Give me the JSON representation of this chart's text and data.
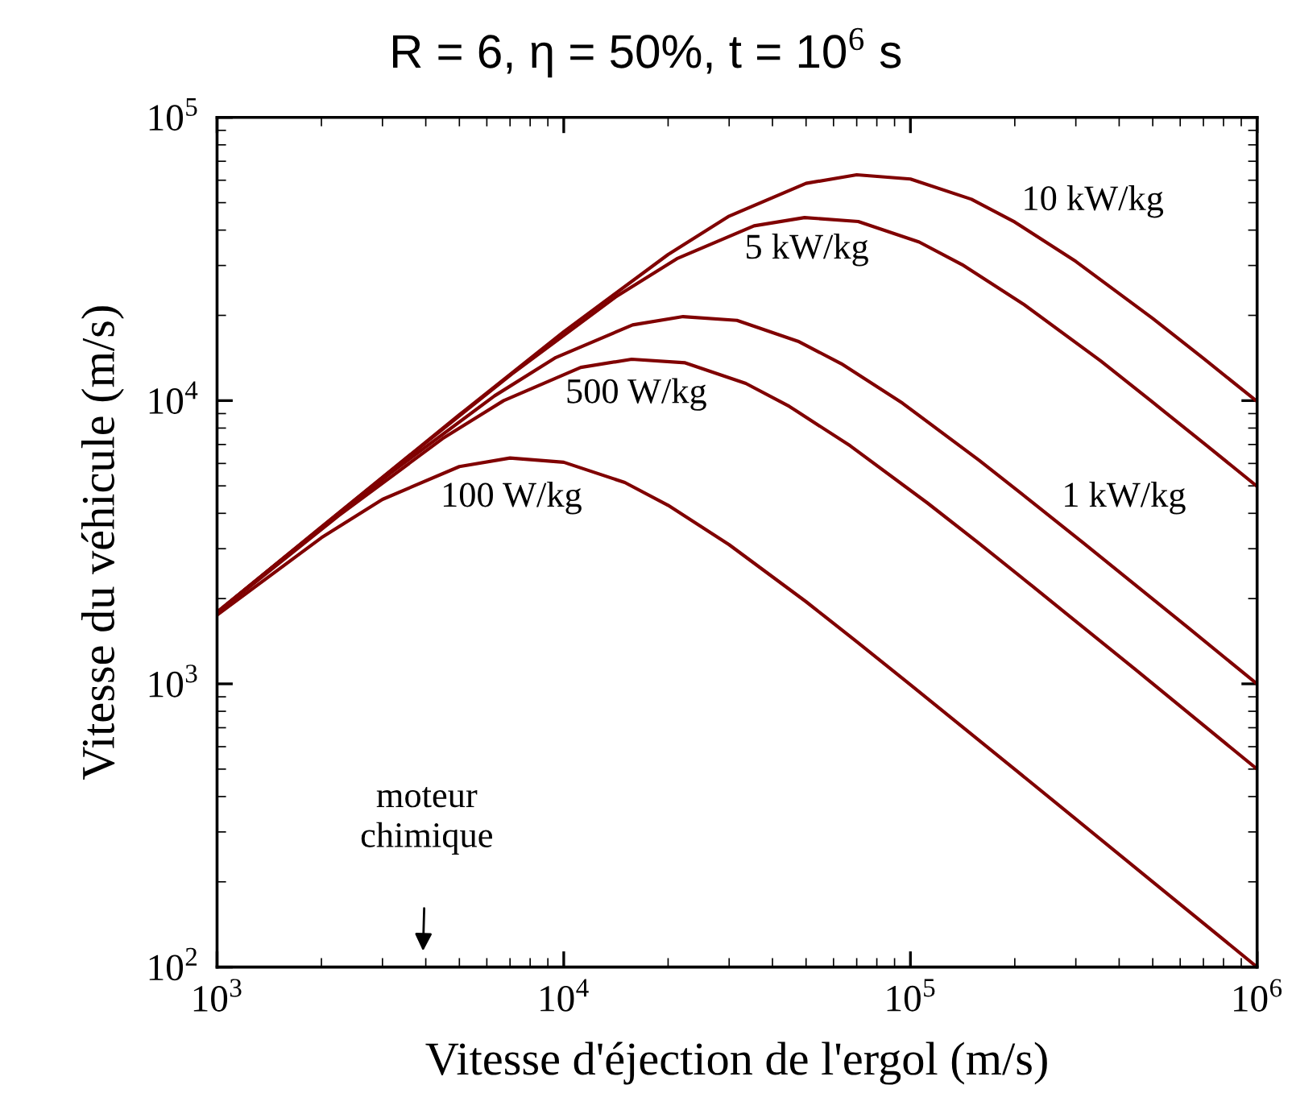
{
  "chart_data": {
    "type": "line",
    "title": "R = 6, η = 50%, t = 10$^{6}$ s",
    "xlabel": "Vitesse d'éjection de l'ergol (m/s)",
    "ylabel": "Vitesse du véhicule (m/s)",
    "log": "xy",
    "xlim": [
      1000,
      1000000
    ],
    "ylim": [
      100,
      100000
    ],
    "xticks": [
      {
        "value": 1000,
        "label": "10$^{3}$"
      },
      {
        "value": 10000,
        "label": "10$^{4}$"
      },
      {
        "value": 100000,
        "label": "10$^{5}$"
      },
      {
        "value": 1000000,
        "label": "10$^{6}$"
      }
    ],
    "yticks": [
      {
        "value": 100,
        "label": "10$^{2}$"
      },
      {
        "value": 1000,
        "label": "10$^{3}$"
      },
      {
        "value": 10000,
        "label": "10$^{4}$"
      },
      {
        "value": 100000,
        "label": "10$^{5}$"
      }
    ],
    "grid": false,
    "marker": "none",
    "line_style": "solid",
    "series": [
      {
        "name": "10 kW/kg",
        "color": "#800000",
        "x": [
          1000,
          2000,
          5000,
          10000,
          20000,
          30000,
          50000,
          70000,
          100000,
          150000,
          200000,
          300000,
          500000,
          700000,
          1000000
        ],
        "values": [
          1790,
          3580,
          8910,
          17500,
          32800,
          44800,
          58500,
          62700,
          60600,
          51400,
          42700,
          31000,
          19500,
          14100,
          9930
        ]
      },
      {
        "name": "5 kW/kg",
        "color": "#800000",
        "x": [
          1000,
          3540,
          7070,
          14100,
          21200,
          35400,
          49500,
          70700,
          106000,
          141000,
          212000,
          354000,
          495000,
          707000,
          1000000
        ],
        "values": [
          1790,
          6300,
          12400,
          23200,
          31700,
          41400,
          44300,
          42900,
          36300,
          30200,
          21900,
          13800,
          9960,
          7020,
          4980
        ]
      },
      {
        "name": "1 kW/kg",
        "color": "#800000",
        "x": [
          1000,
          1580,
          3160,
          6320,
          9490,
          15800,
          22100,
          31600,
          47400,
          63200,
          94900,
          158000,
          221000,
          316000,
          632000,
          1000000
        ],
        "values": [
          1790,
          2820,
          5540,
          10400,
          14200,
          18500,
          19800,
          19200,
          16200,
          13500,
          9790,
          6150,
          4450,
          3140,
          1580,
          999
        ]
      },
      {
        "name": "500 W/kg",
        "color": "#800000",
        "x": [
          1000,
          2240,
          4470,
          6710,
          11200,
          15700,
          22400,
          33500,
          44700,
          67100,
          112000,
          157000,
          224000,
          447000,
          1000000
        ],
        "values": [
          1780,
          3920,
          7340,
          10000,
          13100,
          14000,
          13600,
          11500,
          9550,
          6920,
          4350,
          3150,
          2220,
          1120,
          500
        ]
      },
      {
        "name": "100 W/kg",
        "color": "#800000",
        "x": [
          1000,
          2000,
          3000,
          5000,
          7000,
          10000,
          15000,
          20000,
          30000,
          50000,
          70000,
          100000,
          200000,
          300000,
          500000,
          1000000
        ],
        "values": [
          1750,
          3280,
          4480,
          5850,
          6270,
          6060,
          5140,
          4270,
          3100,
          1950,
          1410,
          993,
          499,
          333,
          200,
          100
        ]
      }
    ],
    "annotations": [
      "moteur\nchimique"
    ]
  }
}
